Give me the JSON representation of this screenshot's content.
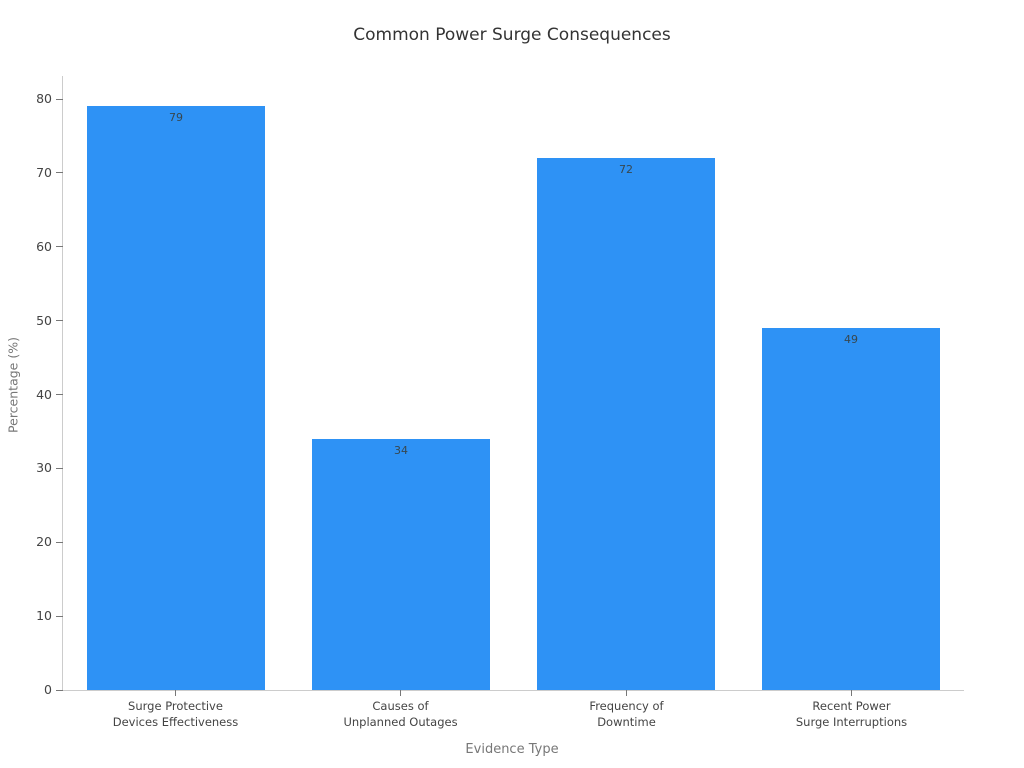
{
  "chart_data": {
    "type": "bar",
    "title": "Common Power Surge Consequences",
    "xlabel": "Evidence Type",
    "ylabel": "Percentage (%)",
    "categories": [
      "Surge Protective\nDevices Effectiveness",
      "Causes of\nUnplanned Outages",
      "Frequency of\nDowntime",
      "Recent Power\nSurge Interruptions"
    ],
    "values": [
      79,
      34,
      72,
      49
    ],
    "bar_labels": [
      "79",
      "34",
      "72",
      "49"
    ],
    "y_ticks": [
      0,
      10,
      20,
      30,
      40,
      50,
      60,
      70,
      80
    ],
    "ylim": [
      0,
      83
    ],
    "grid": false,
    "legend_position": "none",
    "bar_color": "#2E92F5",
    "axis_color": "#cccccc",
    "tick_color": "#777777",
    "title_color": "#333333",
    "tick_label_color": "#444444",
    "value_label_color": "#37474f"
  }
}
